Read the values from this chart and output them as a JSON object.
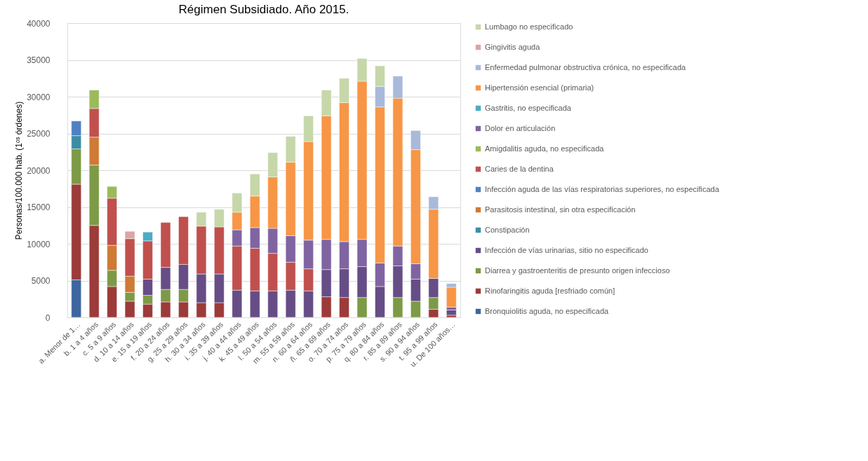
{
  "chart_data": {
    "type": "bar",
    "stacked": true,
    "title": "Régimen Subsidiado. Año 2015.",
    "ylabel": "Personas/100.000 hab. (1ᵒˢ órdenes)",
    "categories": [
      "a. Menor de 1…",
      "b. 1 a 4 años",
      "c. 5 a 9 años",
      "d. 10 a 14 años",
      "e. 15 a 19 años",
      "f. 20 a 24 años",
      "g. 25 a 29 años",
      "h. 30 a 34 años",
      "i. 35 a 39 años",
      "j. 40 a 44 años",
      "k. 45 a 49 años",
      "l. 50 a 54 años",
      "m. 55 a 59 años",
      "n. 60 a 64 años",
      "ñ. 65 a 69 años",
      "o. 70 a 74 años",
      "p. 75 a 79 años",
      "q. 80 a 84 años",
      "r. 85 a 89 años",
      "s. 90 a 94 años",
      "t. 95 a 99 años",
      "u. De 100 años…"
    ],
    "ylim": [
      0,
      40000
    ],
    "yticks": [
      0,
      5000,
      10000,
      15000,
      20000,
      25000,
      30000,
      35000,
      40000
    ],
    "grid": "y",
    "legend": "right",
    "series": [
      {
        "name": "Bronquiolitis aguda, no especificada",
        "color": "#3d66a0",
        "values": [
          5100,
          null,
          null,
          null,
          null,
          null,
          null,
          null,
          null,
          null,
          null,
          null,
          null,
          null,
          null,
          null,
          null,
          null,
          null,
          null,
          null,
          null
        ]
      },
      {
        "name": "Rinofaringitis aguda [resfriado común]",
        "color": "#9c3b39",
        "values": [
          13000,
          12500,
          4200,
          2200,
          1800,
          2100,
          2100,
          2000,
          2000,
          null,
          null,
          null,
          null,
          null,
          2800,
          2700,
          null,
          null,
          null,
          null,
          1100,
          300
        ]
      },
      {
        "name": "Diarrea y gastroenteritis de presunto origen infeccioso",
        "color": "#7d9a46",
        "values": [
          4800,
          8200,
          2200,
          1200,
          1200,
          1700,
          1700,
          null,
          null,
          null,
          null,
          null,
          null,
          null,
          null,
          null,
          2700,
          null,
          2700,
          2200,
          1600,
          null
        ]
      },
      {
        "name": "Infección de vías urinarias, sitio no especificado",
        "color": "#664d86",
        "values": [
          null,
          null,
          null,
          null,
          2200,
          3000,
          3400,
          3900,
          3900,
          3700,
          3600,
          3600,
          3700,
          3600,
          3700,
          3900,
          4200,
          4200,
          4300,
          3000,
          2600,
          700
        ]
      },
      {
        "name": "Constipación",
        "color": "#3a8ea3",
        "values": [
          1800,
          null,
          null,
          null,
          null,
          null,
          null,
          null,
          null,
          null,
          null,
          null,
          null,
          null,
          null,
          null,
          null,
          null,
          null,
          null,
          null,
          null
        ]
      },
      {
        "name": "Parasitosis intestinal, sin otra especificación",
        "color": "#cf7a35",
        "values": [
          null,
          3800,
          3400,
          2200,
          null,
          null,
          null,
          null,
          null,
          null,
          null,
          null,
          null,
          null,
          null,
          null,
          null,
          null,
          null,
          null,
          null,
          null
        ]
      },
      {
        "name": "Infección aguda de las vías respiratorias superiores, no especificada",
        "color": "#4f81c2",
        "values": [
          2000,
          null,
          null,
          null,
          null,
          null,
          null,
          null,
          null,
          null,
          null,
          null,
          null,
          null,
          null,
          null,
          null,
          null,
          null,
          null,
          null,
          null
        ]
      },
      {
        "name": "Caries de la dentina",
        "color": "#c0504d",
        "values": [
          null,
          3900,
          6400,
          5100,
          5200,
          6100,
          6500,
          6500,
          6400,
          6000,
          5800,
          5100,
          3800,
          3000,
          null,
          null,
          null,
          null,
          null,
          null,
          null,
          null
        ]
      },
      {
        "name": "Amigdalitis aguda, no especificada",
        "color": "#9bbb59",
        "values": [
          null,
          2500,
          1600,
          null,
          null,
          null,
          null,
          null,
          null,
          null,
          null,
          null,
          null,
          null,
          null,
          null,
          null,
          null,
          null,
          null,
          null,
          null
        ]
      },
      {
        "name": "Dolor en articulación",
        "color": "#8064a2",
        "values": [
          null,
          null,
          null,
          null,
          null,
          null,
          null,
          null,
          null,
          2200,
          2800,
          3400,
          3600,
          3900,
          4100,
          3700,
          3700,
          3200,
          2700,
          2100,
          null,
          400
        ]
      },
      {
        "name": "Gastritis, no especificada",
        "color": "#4bacc6",
        "values": [
          null,
          null,
          null,
          null,
          1200,
          null,
          null,
          null,
          null,
          null,
          null,
          null,
          null,
          null,
          null,
          null,
          null,
          null,
          null,
          null,
          null,
          null
        ]
      },
      {
        "name": "Hipertensión esencial (primaria)",
        "color": "#f79646",
        "values": [
          null,
          null,
          null,
          null,
          null,
          null,
          null,
          null,
          null,
          2400,
          4300,
          7000,
          10000,
          13400,
          16800,
          18900,
          21500,
          21200,
          20100,
          15500,
          9400,
          2700
        ]
      },
      {
        "name": "Enfermedad pulmonar obstructiva crónica, no especificada",
        "color": "#a9b9d9",
        "values": [
          null,
          null,
          null,
          null,
          null,
          null,
          null,
          null,
          null,
          null,
          null,
          null,
          null,
          null,
          null,
          null,
          null,
          2800,
          3000,
          2600,
          1700,
          500
        ]
      },
      {
        "name": "Gingivitis aguda",
        "color": "#dca4a3",
        "values": [
          null,
          null,
          null,
          1000,
          null,
          null,
          null,
          null,
          null,
          null,
          null,
          null,
          null,
          null,
          null,
          null,
          null,
          null,
          null,
          null,
          null,
          null
        ]
      },
      {
        "name": "Lumbago no especificado",
        "color": "#c6d7a9",
        "values": [
          null,
          null,
          null,
          null,
          null,
          null,
          null,
          1900,
          2400,
          2600,
          3000,
          3300,
          3500,
          3500,
          3500,
          3300,
          3100,
          2800,
          null,
          null,
          null,
          null
        ]
      }
    ]
  }
}
